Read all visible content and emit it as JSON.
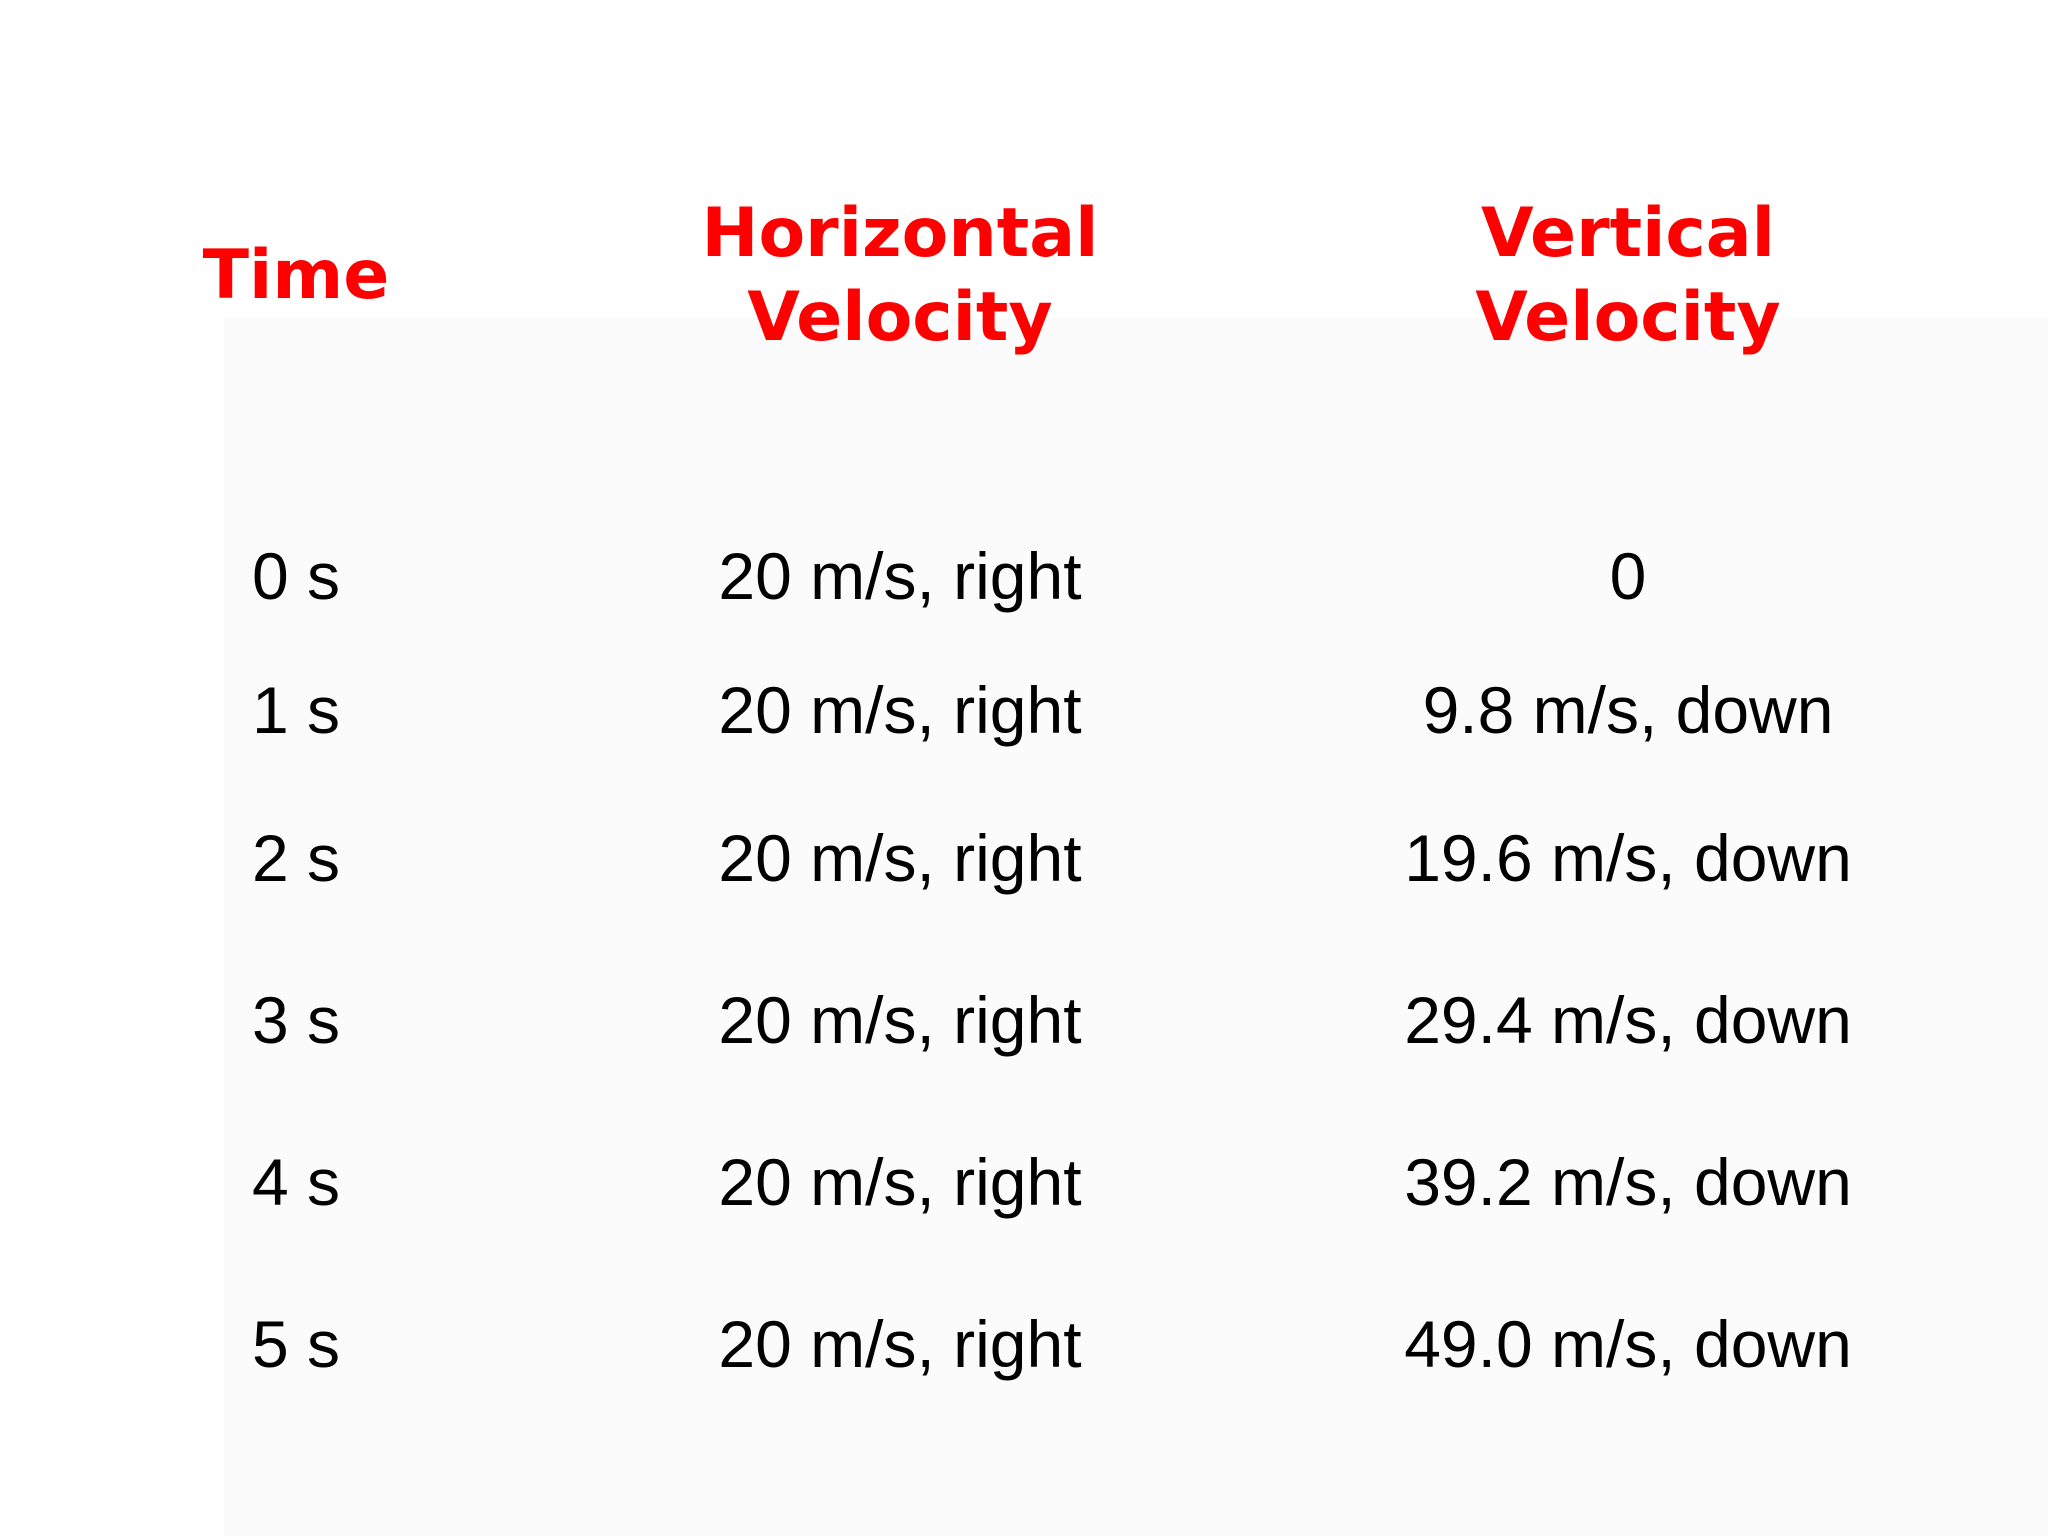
{
  "table": {
    "headers": {
      "time": "Time",
      "horizontal": [
        "Horizontal",
        "Velocity"
      ],
      "vertical": [
        "Vertical",
        "Velocity"
      ]
    },
    "rows": [
      {
        "time": "0 s",
        "horizontal": "20 m/s, right",
        "vertical": "0"
      },
      {
        "time": "1 s",
        "horizontal": "20 m/s, right",
        "vertical": "9.8 m/s, down"
      },
      {
        "time": "2 s",
        "horizontal": "20 m/s, right",
        "vertical": "19.6 m/s, down"
      },
      {
        "time": "3 s",
        "horizontal": "20 m/s, right",
        "vertical": "29.4 m/s, down"
      },
      {
        "time": "4 s",
        "horizontal": "20 m/s, right",
        "vertical": "39.2 m/s, down"
      },
      {
        "time": "5 s",
        "horizontal": "20 m/s, right",
        "vertical": "49.0 m/s, down"
      }
    ]
  },
  "colors": {
    "header": "#ff0000",
    "text": "#000000",
    "background": "#ffffff"
  }
}
